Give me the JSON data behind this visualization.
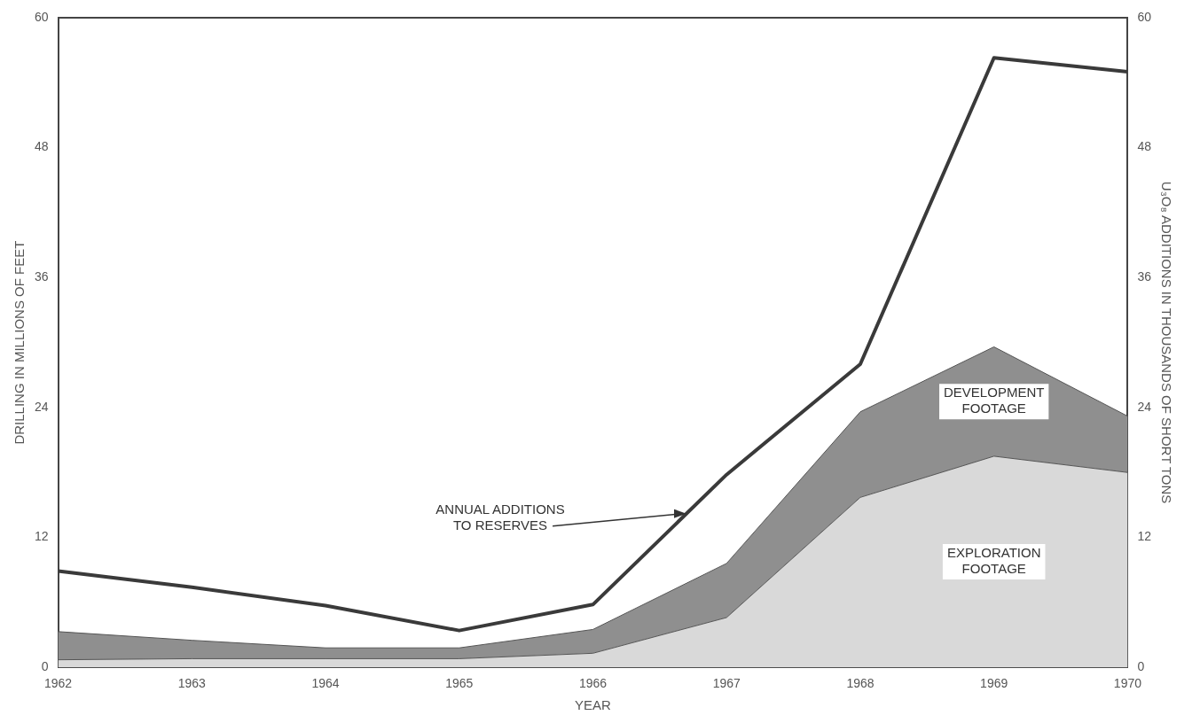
{
  "chart_data": {
    "type": "area",
    "stacked": true,
    "xlabel": "YEAR",
    "ylabel": "DRILLING IN MILLIONS OF FEET",
    "y2label": "U₃O₈ ADDITIONS IN THOUSANDS OF SHORT TONS",
    "x": [
      1962,
      1963,
      1964,
      1965,
      1966,
      1967,
      1968,
      1969,
      1970
    ],
    "xlim": [
      1962,
      1970
    ],
    "xticks": [
      1962,
      1963,
      1964,
      1965,
      1966,
      1967,
      1968,
      1969,
      1970
    ],
    "ylim": [
      0,
      60
    ],
    "yticks": [
      0,
      12,
      24,
      36,
      48,
      60
    ],
    "y2lim": [
      0,
      60
    ],
    "y2ticks": [
      0,
      12,
      24,
      36,
      48,
      60
    ],
    "series": [
      {
        "name": "EXPLORATION FOOTAGE",
        "color": "#d9d9d9",
        "values": [
          0.7,
          0.8,
          0.8,
          0.8,
          1.3,
          4.6,
          15.7,
          19.5,
          18.0
        ]
      },
      {
        "name": "DEVELOPMENT FOOTAGE",
        "color": "#8f8f8f",
        "values": [
          2.6,
          1.7,
          1.0,
          1.0,
          2.2,
          5.0,
          7.9,
          10.1,
          5.2
        ]
      },
      {
        "type": "line",
        "axis": "y2",
        "color": "#3a3a3a",
        "values": [
          8.9,
          7.4,
          5.7,
          3.4,
          5.8,
          17.8,
          28.0,
          56.3,
          55.0
        ]
      }
    ],
    "annotations": [
      {
        "text": "ANNUAL ADDITIONS TO RESERVES",
        "x": 1966.7,
        "y": 14.2
      }
    ],
    "grid": false,
    "legend": false
  }
}
